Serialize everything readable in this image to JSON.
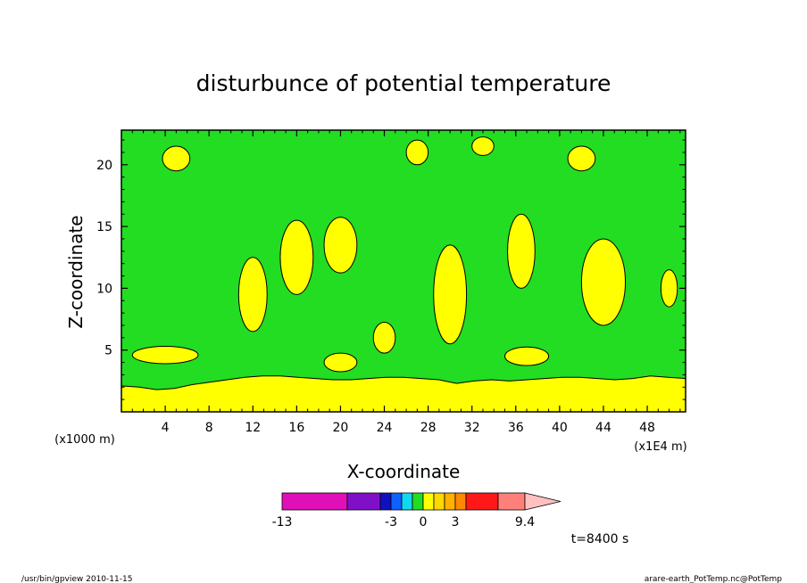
{
  "chart_data": {
    "type": "heatmap",
    "title": "disturbunce of potential temperature",
    "xlabel": "X-coordinate",
    "ylabel": "Z-coordinate",
    "x_unit_left": "(x1000 m)",
    "x_unit_right": "(x1E4 m)",
    "xlim": [
      0,
      51.5
    ],
    "ylim": [
      0,
      22.8
    ],
    "x_ticks": [
      "4",
      "8",
      "12",
      "16",
      "20",
      "24",
      "28",
      "32",
      "36",
      "40",
      "44",
      "48"
    ],
    "y_ticks": [
      "5",
      "10",
      "15",
      "20"
    ],
    "background_level_color": "#22dd22",
    "surface_layer": {
      "color": "#ffff00",
      "top_z": [
        2.1,
        2.0,
        1.8,
        1.9,
        2.2,
        2.4,
        2.6,
        2.8,
        2.9,
        2.9,
        2.8,
        2.7,
        2.6,
        2.6,
        2.7,
        2.8,
        2.8,
        2.7,
        2.6,
        2.3,
        2.5,
        2.6,
        2.5,
        2.6,
        2.7,
        2.8,
        2.8,
        2.7,
        2.6,
        2.7,
        2.9,
        2.8,
        2.7
      ]
    },
    "positive_regions": [
      {
        "x": 4.0,
        "z": 4.6,
        "w": 6.0,
        "h": 1.4
      },
      {
        "x": 12.0,
        "z": 9.5,
        "w": 2.6,
        "h": 6.0
      },
      {
        "x": 16.0,
        "z": 12.5,
        "w": 3.0,
        "h": 6.0
      },
      {
        "x": 20.0,
        "z": 13.5,
        "w": 3.0,
        "h": 4.5
      },
      {
        "x": 24.0,
        "z": 6.0,
        "w": 2.0,
        "h": 2.5
      },
      {
        "x": 30.0,
        "z": 9.5,
        "w": 3.0,
        "h": 8.0
      },
      {
        "x": 36.5,
        "z": 13.0,
        "w": 2.5,
        "h": 6.0
      },
      {
        "x": 44.0,
        "z": 10.5,
        "w": 4.0,
        "h": 7.0
      },
      {
        "x": 50.0,
        "z": 10.0,
        "w": 1.5,
        "h": 3.0
      },
      {
        "x": 5.0,
        "z": 20.5,
        "w": 2.5,
        "h": 2.0
      },
      {
        "x": 27.0,
        "z": 21.0,
        "w": 2.0,
        "h": 2.0
      },
      {
        "x": 33.0,
        "z": 21.5,
        "w": 2.0,
        "h": 1.5
      },
      {
        "x": 42.0,
        "z": 20.5,
        "w": 2.5,
        "h": 2.0
      },
      {
        "x": 20.0,
        "z": 4.0,
        "w": 3.0,
        "h": 1.5
      },
      {
        "x": 37.0,
        "z": 4.5,
        "w": 4.0,
        "h": 1.5
      }
    ],
    "colorbar": {
      "tick_labels": [
        "-13",
        "-3",
        "0",
        "3",
        "9.4"
      ],
      "colors": [
        "#e010b8",
        "#8010c8",
        "#1010c0",
        "#1060ff",
        "#10d8f0",
        "#22dd22",
        "#ffff00",
        "#ffd800",
        "#ffb000",
        "#ff8800",
        "#ff1818",
        "#ff8078",
        "#ffc0c0"
      ]
    },
    "time_label": "t=8400 s"
  },
  "footer": {
    "left": "/usr/bin/gpview  2010-11-15",
    "right": "arare-earth_PotTemp.nc@PotTemp"
  }
}
